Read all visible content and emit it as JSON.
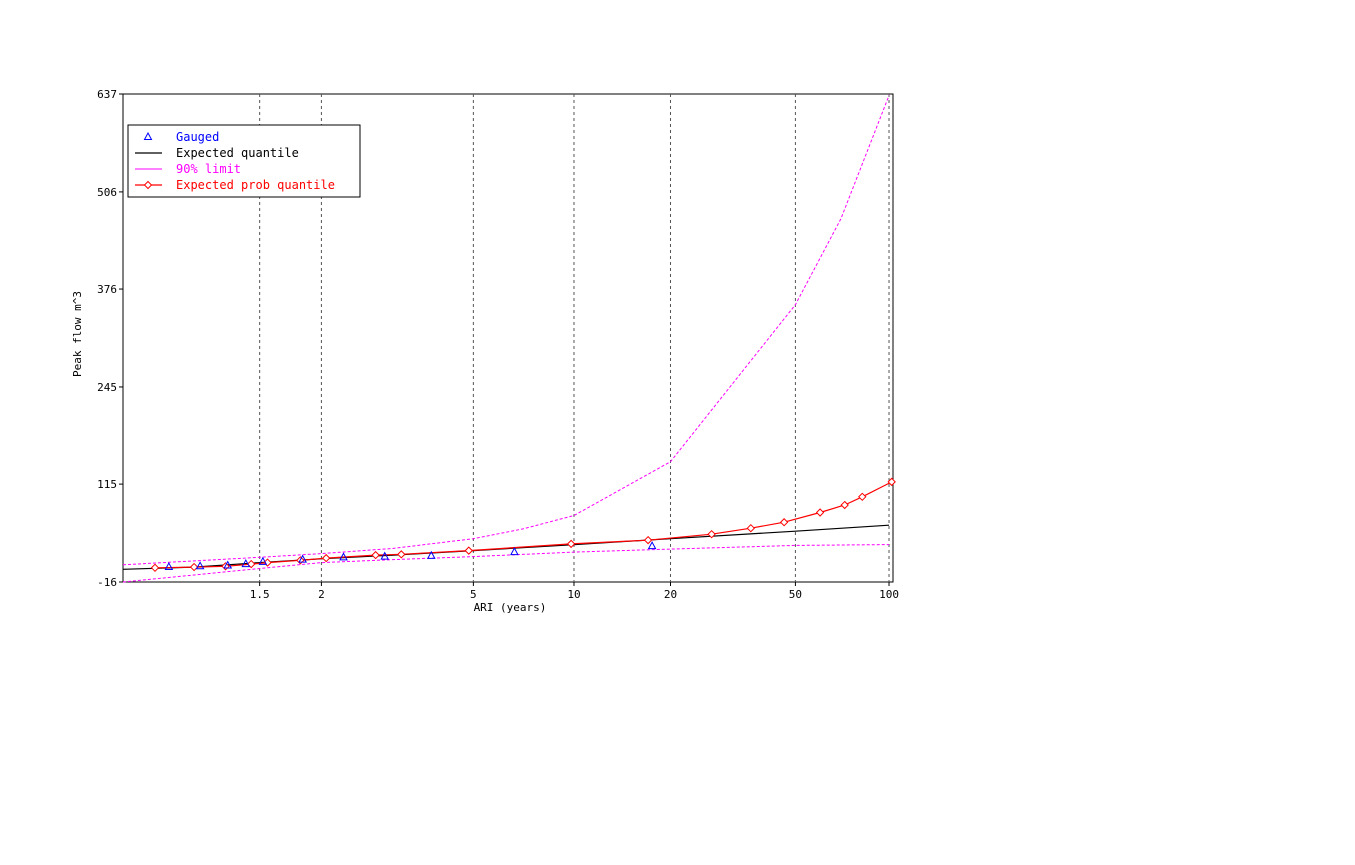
{
  "chart_data": {
    "type": "line",
    "xlabel": "ARI (years)",
    "ylabel": "Peak flow m^3",
    "x_scale": "gumbel-reduced-variate (ARI)",
    "xlim": [
      1.05,
      103
    ],
    "ylim": [
      -16,
      637
    ],
    "x_ticks": [
      1.5,
      2,
      5,
      10,
      20,
      50,
      100
    ],
    "x_tick_labels": [
      "1.5",
      "2",
      "5",
      "10",
      "20",
      "50",
      "100"
    ],
    "y_ticks": [
      -16,
      115,
      245,
      376,
      506,
      637
    ],
    "y_tick_labels": [
      "-16",
      "115",
      "245",
      "376",
      "506",
      "637"
    ],
    "grid": "vertical dashed at x ticks",
    "legend_position": "top-left",
    "series": [
      {
        "name": "Gauged",
        "kind": "markers",
        "marker": "triangle",
        "color": "#0000ff",
        "points": [
          [
            1.13,
            4
          ],
          [
            1.22,
            5
          ],
          [
            1.33,
            6
          ],
          [
            1.42,
            8
          ],
          [
            1.52,
            11
          ],
          [
            1.82,
            14
          ],
          [
            2.25,
            17
          ],
          [
            2.85,
            18
          ],
          [
            3.8,
            19
          ],
          [
            6.6,
            24
          ],
          [
            17.5,
            32
          ]
        ]
      },
      {
        "name": "Expected quantile",
        "kind": "line",
        "color": "#000000",
        "points": [
          [
            1.05,
            1
          ],
          [
            1.2,
            4
          ],
          [
            1.5,
            10
          ],
          [
            2,
            15
          ],
          [
            3,
            20
          ],
          [
            5,
            26
          ],
          [
            10,
            34
          ],
          [
            20,
            42
          ],
          [
            50,
            52
          ],
          [
            100,
            60
          ]
        ]
      },
      {
        "name": "90% limit",
        "kind": "dashed-line",
        "color": "#ff00ff",
        "upper": [
          [
            1.05,
            7
          ],
          [
            1.5,
            17
          ],
          [
            2,
            22
          ],
          [
            3,
            29
          ],
          [
            5,
            42
          ],
          [
            7,
            55
          ],
          [
            10,
            73
          ],
          [
            20,
            145
          ],
          [
            50,
            355
          ],
          [
            70,
            470
          ],
          [
            100,
            635
          ]
        ],
        "lower": [
          [
            1.05,
            -16
          ],
          [
            1.5,
            2
          ],
          [
            2,
            10
          ],
          [
            3,
            14
          ],
          [
            5,
            18
          ],
          [
            10,
            24
          ],
          [
            20,
            28
          ],
          [
            50,
            33
          ],
          [
            100,
            34
          ]
        ]
      },
      {
        "name": "Expected prob quantile",
        "kind": "line-markers",
        "marker": "diamond",
        "color": "#ff0000",
        "points": [
          [
            1.1,
            3
          ],
          [
            1.2,
            4
          ],
          [
            1.32,
            5
          ],
          [
            1.45,
            8
          ],
          [
            1.55,
            10
          ],
          [
            1.8,
            13
          ],
          [
            2.05,
            16
          ],
          [
            2.7,
            20
          ],
          [
            3.15,
            21
          ],
          [
            4.85,
            26
          ],
          [
            9.8,
            35
          ],
          [
            17,
            40
          ],
          [
            27,
            48
          ],
          [
            36,
            56
          ],
          [
            46,
            64
          ],
          [
            60,
            77
          ],
          [
            72,
            87
          ],
          [
            82,
            98
          ],
          [
            102,
            118
          ]
        ]
      }
    ]
  }
}
